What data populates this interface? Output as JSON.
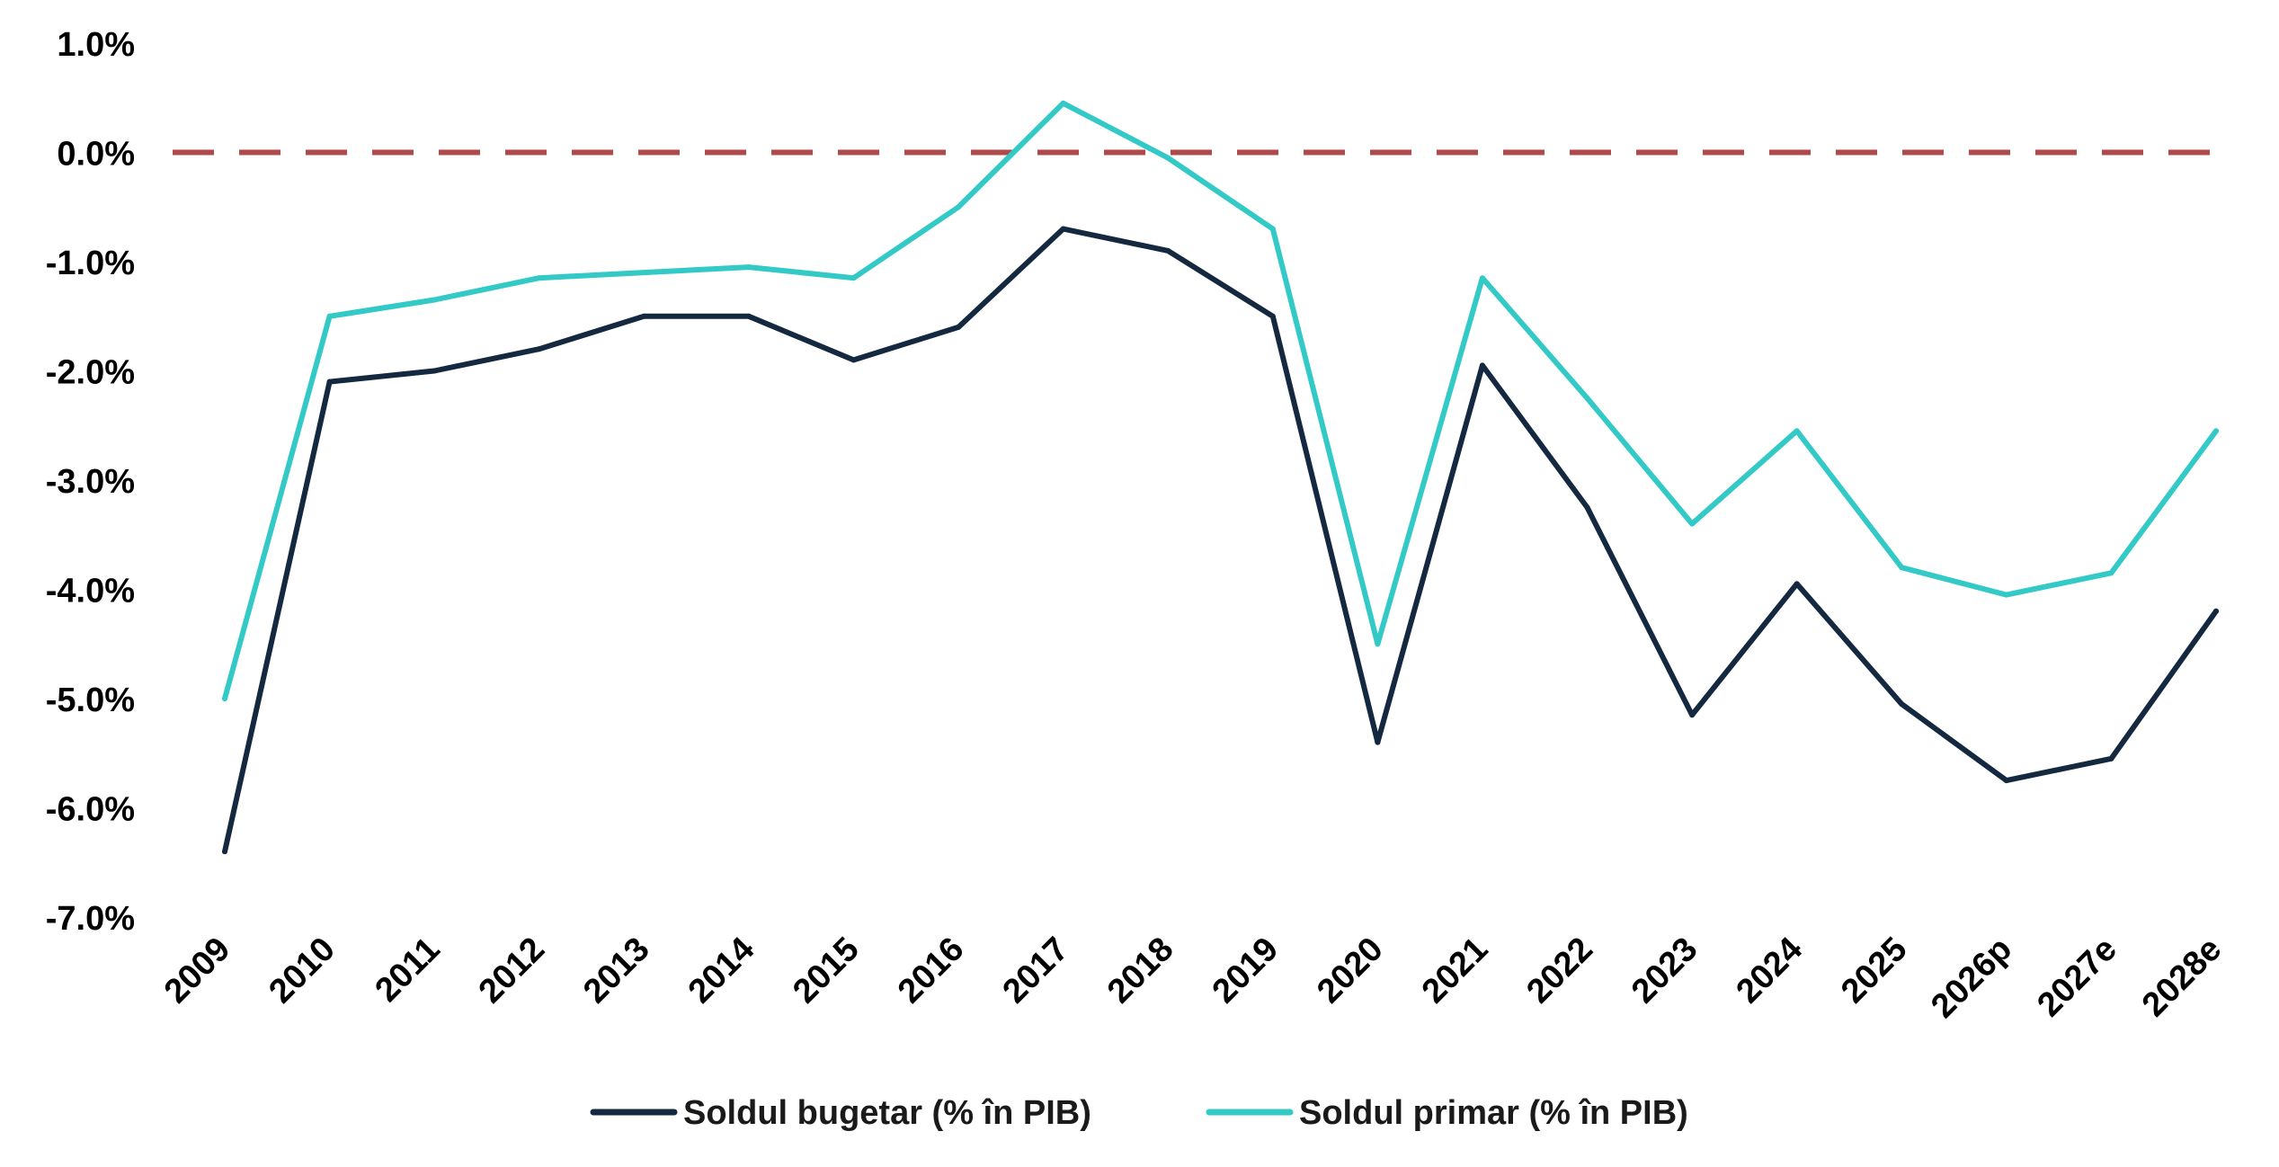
{
  "chart_data": {
    "type": "line",
    "categories": [
      "2009",
      "2010",
      "2011",
      "2012",
      "2013",
      "2014",
      "2015",
      "2016",
      "2017",
      "2018",
      "2019",
      "2020",
      "2021",
      "2022",
      "2023",
      "2024",
      "2025",
      "2026p",
      "2027e",
      "2028e"
    ],
    "series": [
      {
        "name": "Soldul bugetar (% în PIB)",
        "color": "#14283f",
        "values": [
          -6.4,
          -2.1,
          -2.0,
          -1.8,
          -1.5,
          -1.5,
          -1.9,
          -1.6,
          -0.7,
          -0.9,
          -1.5,
          -5.4,
          -1.95,
          -3.25,
          -5.15,
          -3.95,
          -5.05,
          -5.75,
          -5.55,
          -4.2
        ]
      },
      {
        "name": "Soldul primar (% în PIB)",
        "color": "#33c9c6",
        "values": [
          -5.0,
          -1.5,
          -1.35,
          -1.15,
          -1.1,
          -1.05,
          -1.15,
          -0.5,
          0.45,
          -0.05,
          -0.7,
          -4.5,
          -1.15,
          -2.25,
          -3.4,
          -2.55,
          -3.8,
          -4.05,
          -3.85,
          -2.55
        ]
      }
    ],
    "reference_line": {
      "value": 0.0,
      "color": "#b04a4a",
      "style": "dashed"
    },
    "y_ticks": [
      "1.0%",
      "0.0%",
      "-1.0%",
      "-2.0%",
      "-3.0%",
      "-4.0%",
      "-5.0%",
      "-6.0%",
      "-7.0%"
    ],
    "ylim": [
      -7.0,
      1.0
    ],
    "grid": false,
    "legend_position": "bottom-center",
    "title": "",
    "xlabel": "",
    "ylabel": ""
  }
}
